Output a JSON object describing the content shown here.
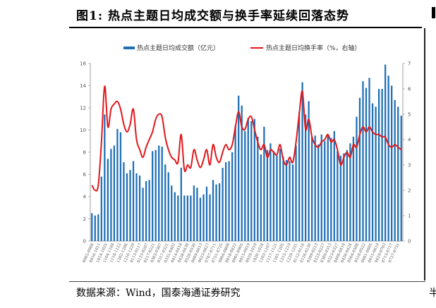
{
  "header": {
    "title": "图1:  热点主题日均成交额与换手率延续回落态势",
    "right_char": ""
  },
  "footer": {
    "source": "数据来源：Wind，国泰海通证券研究",
    "right_char": "半"
  },
  "colors": {
    "bar": "#1f6fb5",
    "line": "#e0181b",
    "axis": "#888888"
  },
  "chart_data": {
    "type": "bar",
    "legend": [
      "热点主题日均成交额（亿元）",
      "热点主题日均换手率（%，右轴）"
    ],
    "legend_position": "top",
    "ylim": [
      0,
      16
    ],
    "yticks": [
      0,
      2,
      4,
      6,
      8,
      10,
      12,
      14,
      16
    ],
    "y2lim": [
      0,
      7
    ],
    "y2ticks": [
      0,
      1,
      2,
      3,
      4,
      5,
      6,
      7
    ],
    "grid": false,
    "xtick_labels": [
      "0902-0906",
      "0916-1011",
      "1014-1025",
      "1104-1108",
      "1118-1122",
      "1202-1206",
      "1216-1220",
      "0113-0117",
      "0123-0207",
      "0217-0221",
      "0303-0307",
      "0317-0321",
      "0331-0403",
      "0414-0418",
      "0428-0430",
      "0526-0530",
      "0609-0613",
      "0623-0627",
      "0707-0711",
      "0721-0725",
      "0804-0808",
      "0818-0822",
      "0901-0905",
      "0915-0919",
      "0929-1010",
      "1020-1024",
      "1103-1107",
      "1117-1121",
      "1201-1205",
      "1215-1219",
      "1229-1231",
      "0112-0116",
      "0126-0130",
      "0209-0213",
      "0223-0227",
      "0309-0313",
      "0323-0327",
      "0406-0410",
      "0420-0424",
      "0504-0508",
      "0518-0522",
      "0601-0605",
      "0615-0619",
      "0629-0703",
      "0713-0717",
      "0727-0731"
    ],
    "bars": [
      2.5,
      2.3,
      2.4,
      5.8,
      11.4,
      7.4,
      8.3,
      8.6,
      10.1,
      9.8,
      7.1,
      6.1,
      6.4,
      7.2,
      6.1,
      5.9,
      4.8,
      5.4,
      5.5,
      8.1,
      8.2,
      8.6,
      8.5,
      6.9,
      6.2,
      5.0,
      4.4,
      4.1,
      6.6,
      4.1,
      4.1,
      4.1,
      5.0,
      4.8,
      3.9,
      4.2,
      4.9,
      4.2,
      5.5,
      5.1,
      5.2,
      6.6,
      7.1,
      7.2,
      8.0,
      10.4,
      13.1,
      12.2,
      9.9,
      11.1,
      10.8,
      11.0,
      9.4,
      7.8,
      10.3,
      8.2,
      8.8,
      8.1,
      7.7,
      8.3,
      7.6,
      7.3,
      7.2,
      6.9,
      8.6,
      11.6,
      14.3,
      11.4,
      12.6,
      9.4,
      9.5,
      8.7,
      9.6,
      9.0,
      9.6,
      9.3,
      9.9,
      8.1,
      7.7,
      7.9,
      8.2,
      8.8,
      9.4,
      11.2,
      12.9,
      14.4,
      13.8,
      14.7,
      12.4,
      12.1,
      13.7,
      13.7,
      15.9,
      14.9,
      14.0,
      12.7,
      12.1,
      11.3
    ],
    "line": [
      2.2,
      2.0,
      2.2,
      3.9,
      6.1,
      4.5,
      5.2,
      5.4,
      5.5,
      5.2,
      4.6,
      4.3,
      4.6,
      5.2,
      4.0,
      3.6,
      3.3,
      3.7,
      4.0,
      4.3,
      4.8,
      5.0,
      4.9,
      4.1,
      3.6,
      3.3,
      3.2,
      3.1,
      4.2,
      2.8,
      3.0,
      2.9,
      3.6,
      3.2,
      2.9,
      3.2,
      3.6,
      3.0,
      3.8,
      3.3,
      3.1,
      3.5,
      3.8,
      3.6,
      3.8,
      4.5,
      5.1,
      4.5,
      4.4,
      4.8,
      4.9,
      4.4,
      3.9,
      3.6,
      3.8,
      3.3,
      3.6,
      3.5,
      3.4,
      3.8,
      3.2,
      3.0,
      3.3,
      3.1,
      3.9,
      5.0,
      5.9,
      4.4,
      4.8,
      4.1,
      3.8,
      3.7,
      3.9,
      4.0,
      4.2,
      3.9,
      4.0,
      3.6,
      3.0,
      3.3,
      3.5,
      3.3,
      3.8,
      3.7,
      4.2,
      4.5,
      4.3,
      4.5,
      4.3,
      4.2,
      4.2,
      4.1,
      4.1,
      3.8,
      3.7,
      3.8,
      3.7,
      3.6
    ]
  }
}
